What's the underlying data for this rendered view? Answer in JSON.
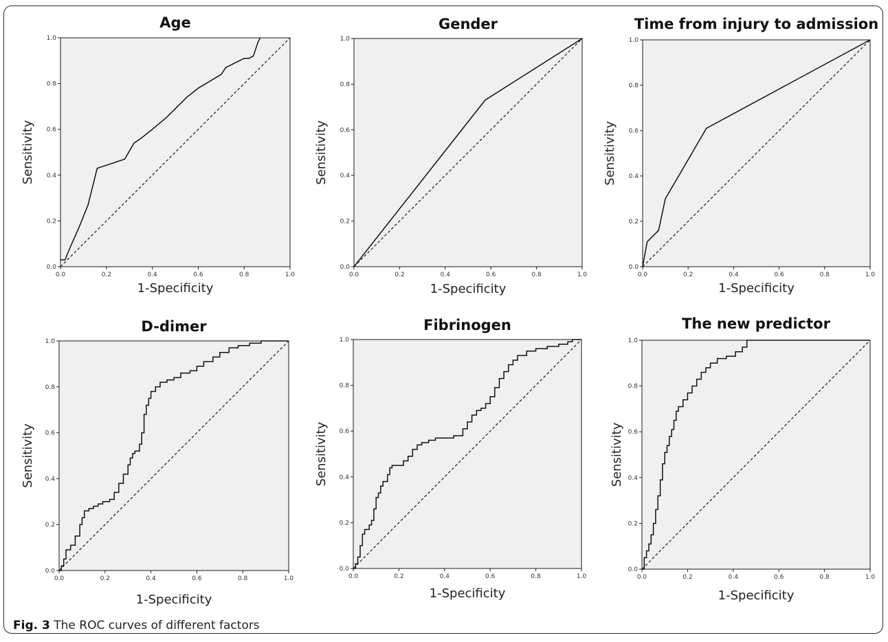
{
  "caption": {
    "label": "Fig. 3",
    "text": "The ROC curves of different factors"
  },
  "chart_data": [
    {
      "type": "line",
      "title": "Age",
      "xlabel": "1-Specificity",
      "ylabel": "Sensitivity",
      "xlim": [
        0,
        1
      ],
      "ylim": [
        0,
        1
      ],
      "xticks": [
        "0.0",
        "0.2",
        "0.4",
        "0.6",
        "0.8",
        "1.0"
      ],
      "yticks": [
        "0.0",
        "0.2",
        "0.4",
        "0.6",
        "0.8",
        "1.0"
      ],
      "curve": {
        "step": false,
        "x": [
          0,
          0.02,
          0.04,
          0.08,
          0.12,
          0.16,
          0.22,
          0.28,
          0.32,
          0.35,
          0.4,
          0.46,
          0.5,
          0.55,
          0.6,
          0.65,
          0.7,
          0.72,
          0.76,
          0.8,
          0.82,
          0.84,
          0.86,
          0.87
        ],
        "y": [
          0.03,
          0.03,
          0.08,
          0.17,
          0.27,
          0.43,
          0.45,
          0.47,
          0.54,
          0.56,
          0.6,
          0.65,
          0.69,
          0.74,
          0.78,
          0.81,
          0.84,
          0.87,
          0.89,
          0.91,
          0.91,
          0.92,
          0.98,
          1.0
        ]
      },
      "reference": {
        "x": [
          0,
          1
        ],
        "y": [
          0,
          1
        ]
      }
    },
    {
      "type": "line",
      "title": "Gender",
      "xlabel": "1-Specificity",
      "ylabel": "Sensitivity",
      "xlim": [
        0,
        1
      ],
      "ylim": [
        0,
        1
      ],
      "xticks": [
        "0.0",
        "0.2",
        "0.4",
        "0.6",
        "0.8",
        "1.0"
      ],
      "yticks": [
        "0.0",
        "0.2",
        "0.4",
        "0.6",
        "0.8",
        "1.0"
      ],
      "curve": {
        "step": false,
        "x": [
          0,
          0.575,
          1.0
        ],
        "y": [
          0,
          0.73,
          1.0
        ]
      },
      "reference": {
        "x": [
          0,
          1
        ],
        "y": [
          0,
          1
        ]
      }
    },
    {
      "type": "line",
      "title": "Time from injury to admission",
      "xlabel": "1-Specificity",
      "ylabel": "Sensitivity",
      "xlim": [
        0,
        1
      ],
      "ylim": [
        0,
        1
      ],
      "xticks": [
        "0.0",
        "0.2",
        "0.4",
        "0.6",
        "0.8",
        "1.0"
      ],
      "yticks": [
        "0.0",
        "0.2",
        "0.4",
        "0.6",
        "0.8",
        "1.0"
      ],
      "curve": {
        "step": false,
        "x": [
          0,
          0.02,
          0.07,
          0.1,
          0.17,
          0.28,
          1.0
        ],
        "y": [
          0,
          0.11,
          0.16,
          0.3,
          0.42,
          0.61,
          1.0
        ]
      },
      "reference": {
        "x": [
          0,
          1
        ],
        "y": [
          0,
          1
        ]
      }
    },
    {
      "type": "line",
      "title": "D-dimer",
      "xlabel": "1-Specificity",
      "ylabel": "Sensitivity",
      "xlim": [
        0,
        1
      ],
      "ylim": [
        0,
        1
      ],
      "xticks": [
        "0.0",
        "0.2",
        "0.4",
        "0.6",
        "0.8",
        "1.0"
      ],
      "yticks": [
        "0.0",
        "0.2",
        "0.4",
        "0.6",
        "0.8",
        "1.0"
      ],
      "curve": {
        "step": true,
        "x": [
          0,
          0.01,
          0.02,
          0.03,
          0.05,
          0.07,
          0.09,
          0.1,
          0.11,
          0.13,
          0.15,
          0.17,
          0.19,
          0.22,
          0.24,
          0.26,
          0.28,
          0.3,
          0.31,
          0.32,
          0.33,
          0.35,
          0.36,
          0.37,
          0.38,
          0.39,
          0.4,
          0.42,
          0.44,
          0.47,
          0.5,
          0.53,
          0.57,
          0.6,
          0.63,
          0.67,
          0.7,
          0.74,
          0.78,
          0.83,
          0.88,
          1.0
        ],
        "y": [
          0,
          0.02,
          0.05,
          0.09,
          0.11,
          0.15,
          0.2,
          0.23,
          0.26,
          0.27,
          0.28,
          0.29,
          0.3,
          0.31,
          0.34,
          0.38,
          0.42,
          0.46,
          0.49,
          0.51,
          0.52,
          0.55,
          0.6,
          0.68,
          0.72,
          0.75,
          0.78,
          0.8,
          0.82,
          0.83,
          0.84,
          0.86,
          0.87,
          0.89,
          0.91,
          0.93,
          0.95,
          0.97,
          0.98,
          0.99,
          1.0,
          1.0
        ]
      },
      "reference": {
        "x": [
          0,
          1
        ],
        "y": [
          0,
          1
        ]
      }
    },
    {
      "type": "line",
      "title": "Fibrinogen",
      "xlabel": "1-Specificity",
      "ylabel": "Sensitivity",
      "xlim": [
        0,
        1
      ],
      "ylim": [
        0,
        1
      ],
      "xticks": [
        "0.0",
        "0.2",
        "0.4",
        "0.6",
        "0.8",
        "1.0"
      ],
      "yticks": [
        "0.0",
        "0.2",
        "0.4",
        "0.6",
        "0.8",
        "1.0"
      ],
      "curve": {
        "step": true,
        "x": [
          0,
          0.01,
          0.02,
          0.03,
          0.04,
          0.05,
          0.07,
          0.08,
          0.09,
          0.1,
          0.11,
          0.12,
          0.13,
          0.15,
          0.16,
          0.17,
          0.2,
          0.22,
          0.24,
          0.26,
          0.28,
          0.3,
          0.33,
          0.36,
          0.4,
          0.44,
          0.48,
          0.5,
          0.52,
          0.54,
          0.56,
          0.58,
          0.6,
          0.62,
          0.64,
          0.66,
          0.68,
          0.7,
          0.72,
          0.76,
          0.8,
          0.85,
          0.9,
          0.94,
          0.96,
          1.0
        ],
        "y": [
          0,
          0.02,
          0.05,
          0.1,
          0.15,
          0.17,
          0.19,
          0.21,
          0.26,
          0.31,
          0.33,
          0.36,
          0.38,
          0.41,
          0.44,
          0.45,
          0.45,
          0.47,
          0.49,
          0.52,
          0.54,
          0.55,
          0.56,
          0.57,
          0.57,
          0.58,
          0.61,
          0.64,
          0.67,
          0.69,
          0.7,
          0.72,
          0.75,
          0.79,
          0.83,
          0.86,
          0.89,
          0.91,
          0.93,
          0.95,
          0.96,
          0.97,
          0.98,
          0.99,
          1.0,
          1.0
        ]
      },
      "reference": {
        "x": [
          0,
          1
        ],
        "y": [
          0,
          1
        ]
      }
    },
    {
      "type": "line",
      "title": "The new predictor",
      "xlabel": "1-Specificity",
      "ylabel": "Sensitivity",
      "xlim": [
        0,
        1
      ],
      "ylim": [
        0,
        1
      ],
      "xticks": [
        "0.0",
        "0.2",
        "0.4",
        "0.6",
        "0.8",
        "1.0"
      ],
      "yticks": [
        "0.0",
        "0.2",
        "0.4",
        "0.6",
        "0.8",
        "1.0"
      ],
      "curve": {
        "step": true,
        "x": [
          0,
          0.01,
          0.02,
          0.03,
          0.04,
          0.05,
          0.06,
          0.07,
          0.08,
          0.09,
          0.1,
          0.11,
          0.12,
          0.13,
          0.14,
          0.15,
          0.16,
          0.18,
          0.2,
          0.22,
          0.24,
          0.26,
          0.28,
          0.3,
          0.33,
          0.37,
          0.41,
          0.44,
          0.46,
          1.0
        ],
        "y": [
          0,
          0.05,
          0.08,
          0.11,
          0.15,
          0.2,
          0.26,
          0.32,
          0.39,
          0.46,
          0.51,
          0.54,
          0.58,
          0.61,
          0.65,
          0.69,
          0.71,
          0.74,
          0.77,
          0.8,
          0.83,
          0.86,
          0.88,
          0.9,
          0.92,
          0.93,
          0.95,
          0.97,
          1.0,
          1.0
        ]
      },
      "reference": {
        "x": [
          0,
          1
        ],
        "y": [
          0,
          1
        ]
      }
    }
  ]
}
